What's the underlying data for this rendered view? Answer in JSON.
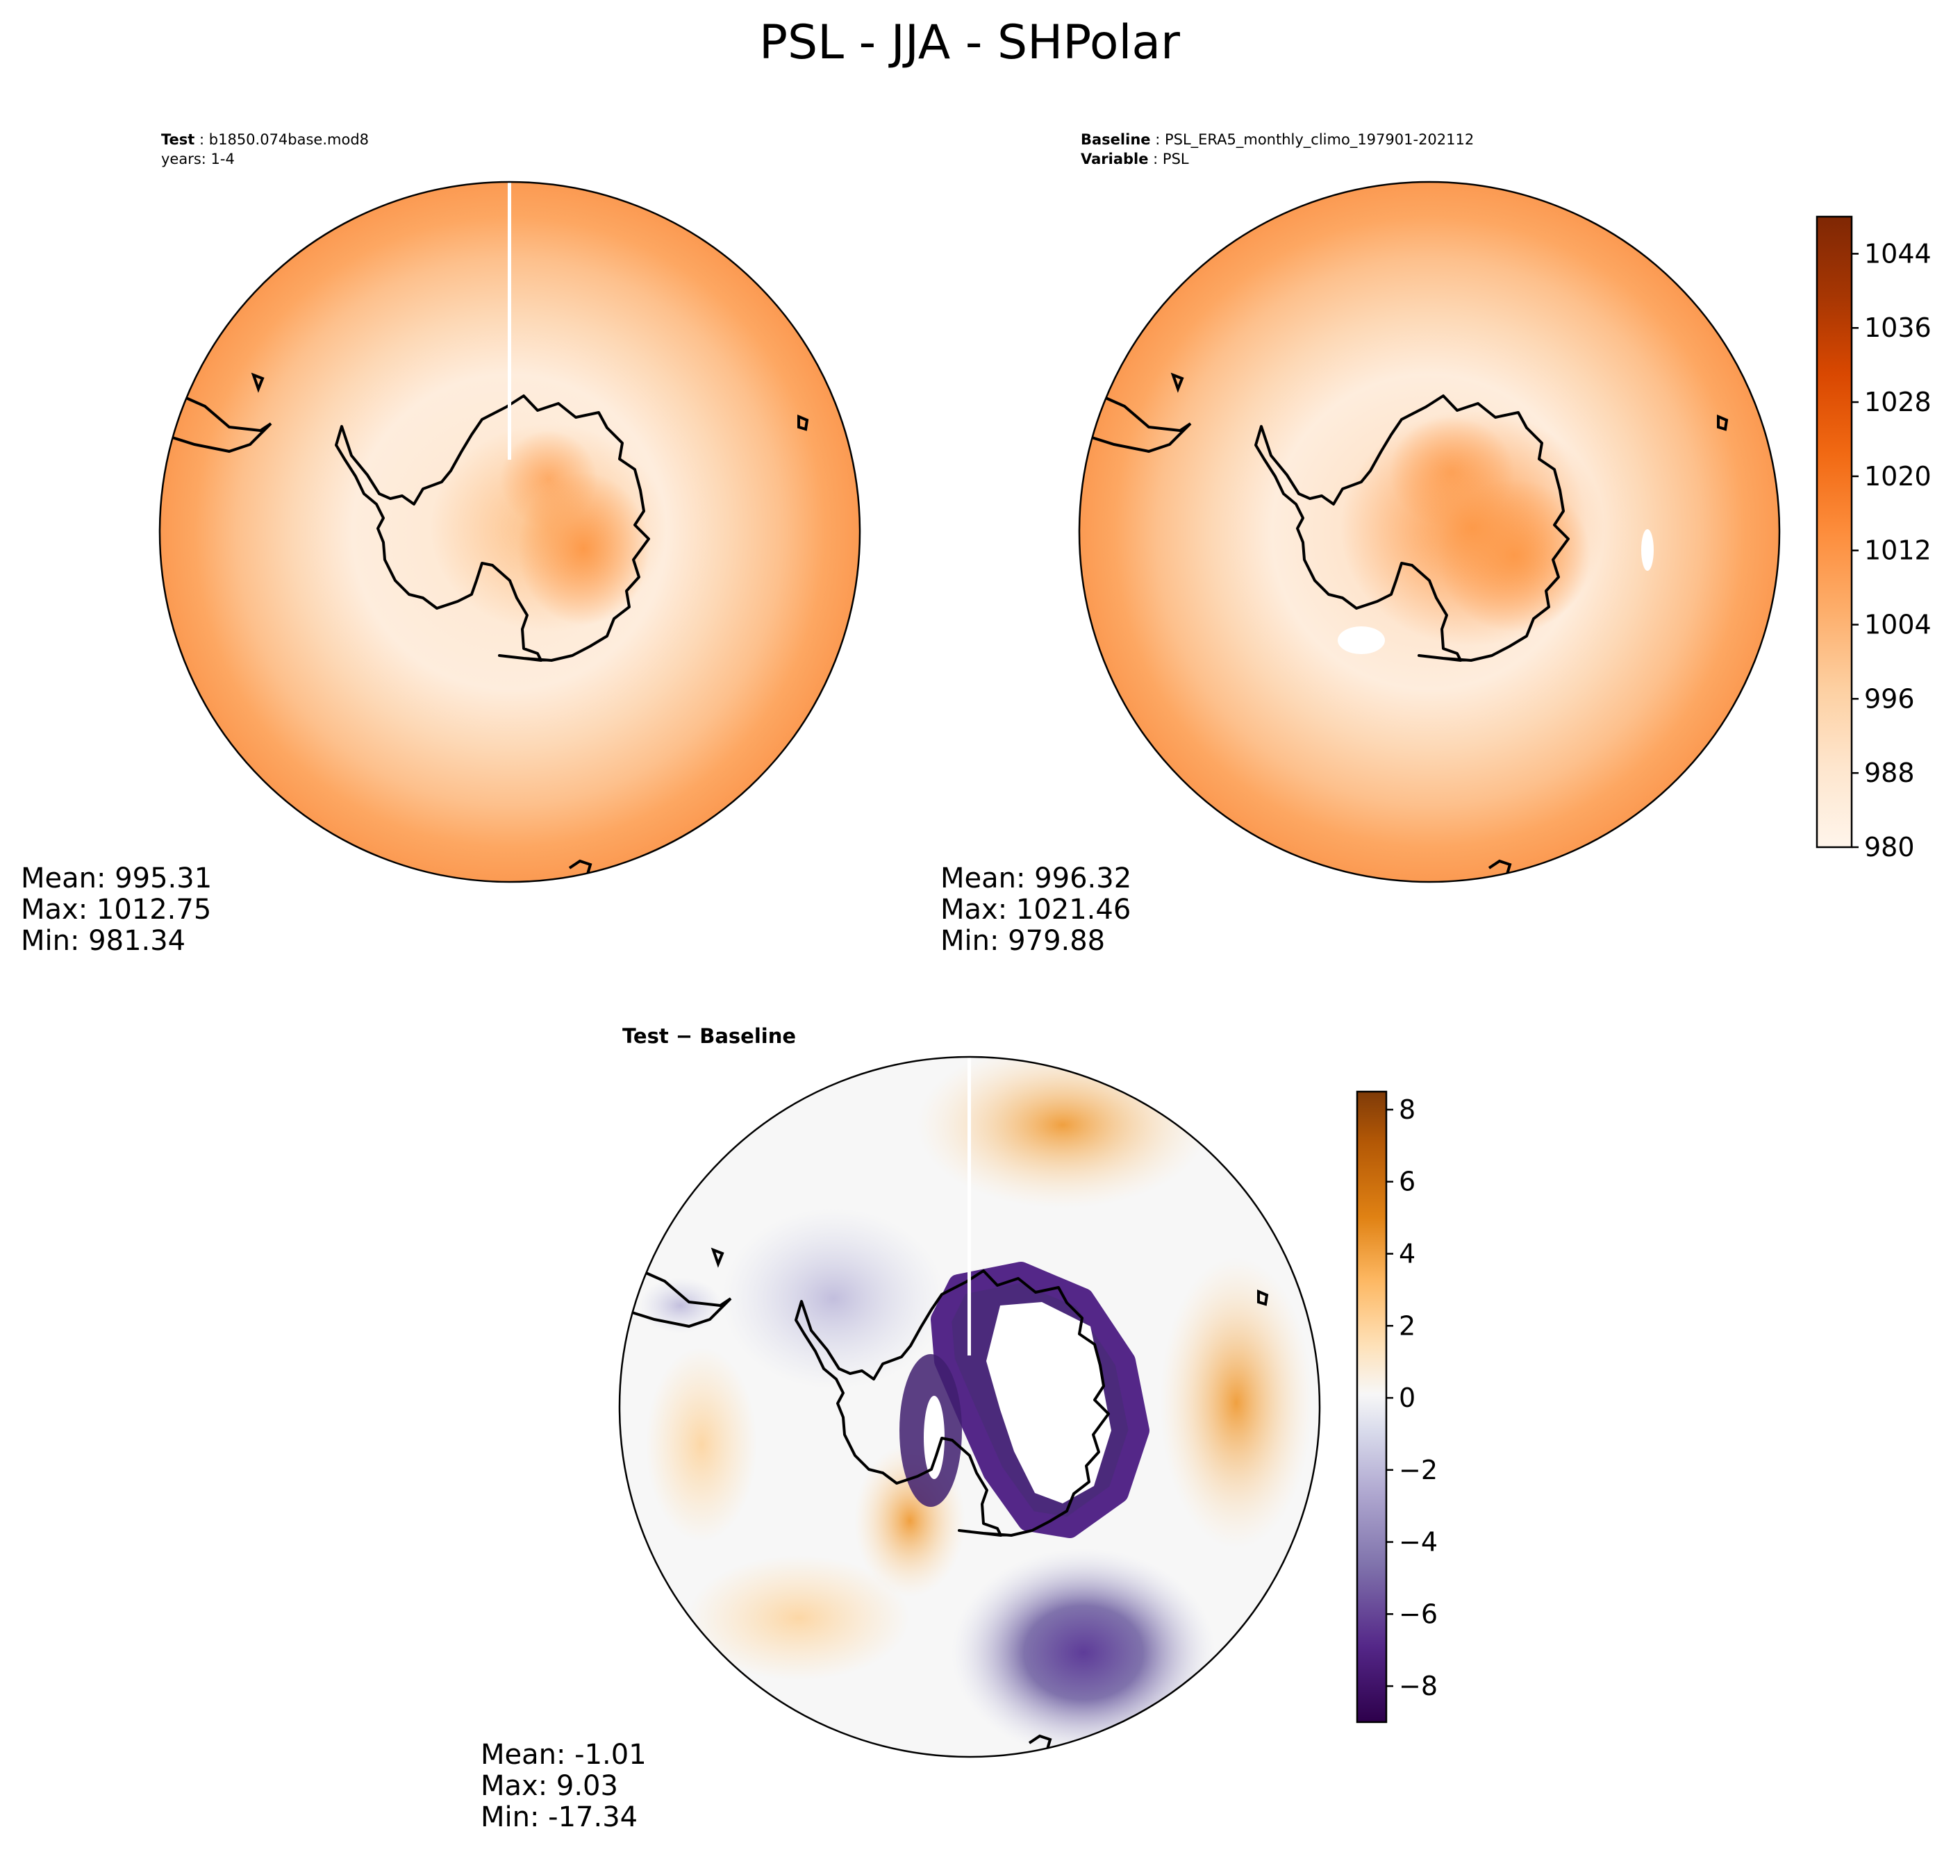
{
  "title": "PSL - JJA - SHPolar",
  "panels": {
    "test": {
      "label_bold": "Test",
      "case": "b1850.074base.mod8",
      "years": "years: 1-4",
      "stats": {
        "mean": "Mean: 995.31",
        "max": "Max: 1012.75",
        "min": "Min: 981.34"
      }
    },
    "baseline": {
      "label_bold": "Baseline",
      "case": "PSL_ERA5_monthly_climo_197901-202112",
      "variable_bold": "Variable",
      "variable": "PSL",
      "stats": {
        "mean": "Mean: 996.32",
        "max": "Max: 1021.46",
        "min": "Min: 979.88"
      }
    },
    "diff": {
      "title_a": "Test",
      "title_sep": " − ",
      "title_b": "Baseline",
      "stats": {
        "mean": "Mean: -1.01",
        "max": "Max:  9.03",
        "min": "Min: -17.34"
      }
    }
  },
  "colorbar_main": {
    "colormap": "Oranges",
    "range": [
      980,
      1048
    ],
    "tick_labels": [
      "980",
      "988",
      "996",
      "1004",
      "1012",
      "1020",
      "1028",
      "1036",
      "1044"
    ],
    "colors": [
      "#fff5eb",
      "#fee6ce",
      "#fdd0a2",
      "#fdae6b",
      "#fd8d3c",
      "#f16913",
      "#d94801",
      "#a63603",
      "#7f2704"
    ]
  },
  "colorbar_diff": {
    "colormap": "PuOr_r",
    "range": [
      -9,
      8.5
    ],
    "tick_labels": [
      "−8",
      "−6",
      "−4",
      "−2",
      "0",
      "2",
      "4",
      "6",
      "8"
    ],
    "colors": [
      "#2d004b",
      "#542788",
      "#8073ac",
      "#b2abd2",
      "#d8daeb",
      "#f7f7f7",
      "#fee0b6",
      "#fdb863",
      "#e08214",
      "#b35806",
      "#7f3b08"
    ]
  }
}
